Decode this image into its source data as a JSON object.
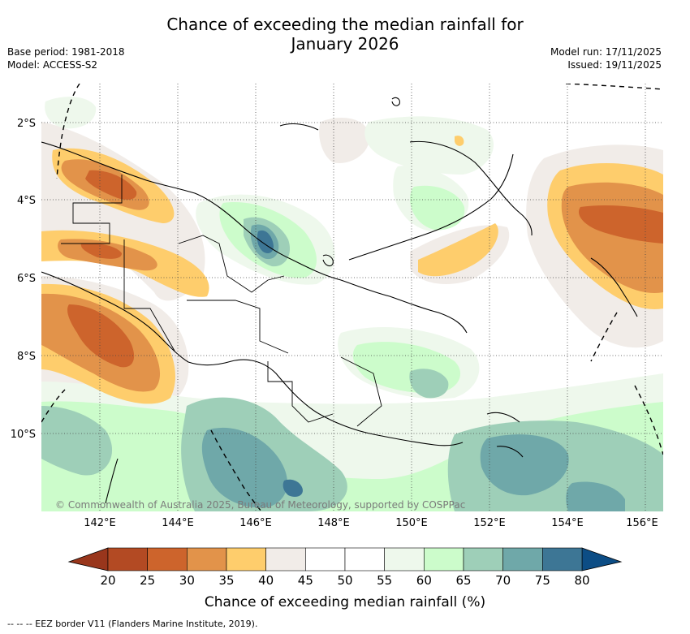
{
  "header": {
    "title_line1": "Chance of exceeding the median rainfall for",
    "title_line2": "January 2026",
    "base_period": "Base period: 1981-2018",
    "model": "Model: ACCESS-S2",
    "model_run": "Model run: 17/11/2025",
    "issued": "Issued: 19/11/2025"
  },
  "map": {
    "lat_labels": [
      "2°S",
      "4°S",
      "6°S",
      "8°S",
      "10°S"
    ],
    "lon_labels": [
      "142°E",
      "144°E",
      "146°E",
      "148°E",
      "150°E",
      "152°E",
      "154°E",
      "156°E"
    ],
    "copyright": "© Commonwealth of Australia 2025, Bureau of Meteorology, supported by COSPPac",
    "colors": {
      "c20_25": "#b34a23",
      "c25_30": "#cd642c",
      "c30_35": "#e2934a",
      "c35_40": "#fecd6c",
      "c40_45": "#f1ece8",
      "c45_55": "#ffffff",
      "c55_60": "#eef8ec",
      "c60_65": "#ccfccb",
      "c65_70": "#9ecfb8",
      "c70_75": "#6fa8a9",
      "c75_80": "#3d7695",
      "c80": "#0c4d85",
      "below20": "#99361c"
    }
  },
  "colorbar": {
    "labels": [
      "20",
      "25",
      "30",
      "35",
      "40",
      "45",
      "50",
      "55",
      "60",
      "65",
      "70",
      "75",
      "80"
    ],
    "colors": [
      "#b34a23",
      "#cd642c",
      "#e2934a",
      "#fecd6c",
      "#f1ece8",
      "#ffffff",
      "#ffffff",
      "#eef8ec",
      "#ccfccb",
      "#9ecfb8",
      "#6fa8a9",
      "#3d7695"
    ],
    "below_color": "#99361c",
    "above_color": "#0c4d85",
    "title": "Chance of exceeding median rainfall (%)"
  },
  "footer": {
    "eez_note": "--  --  -- EEZ border V11 (Flanders Marine Institute, 2019)."
  }
}
